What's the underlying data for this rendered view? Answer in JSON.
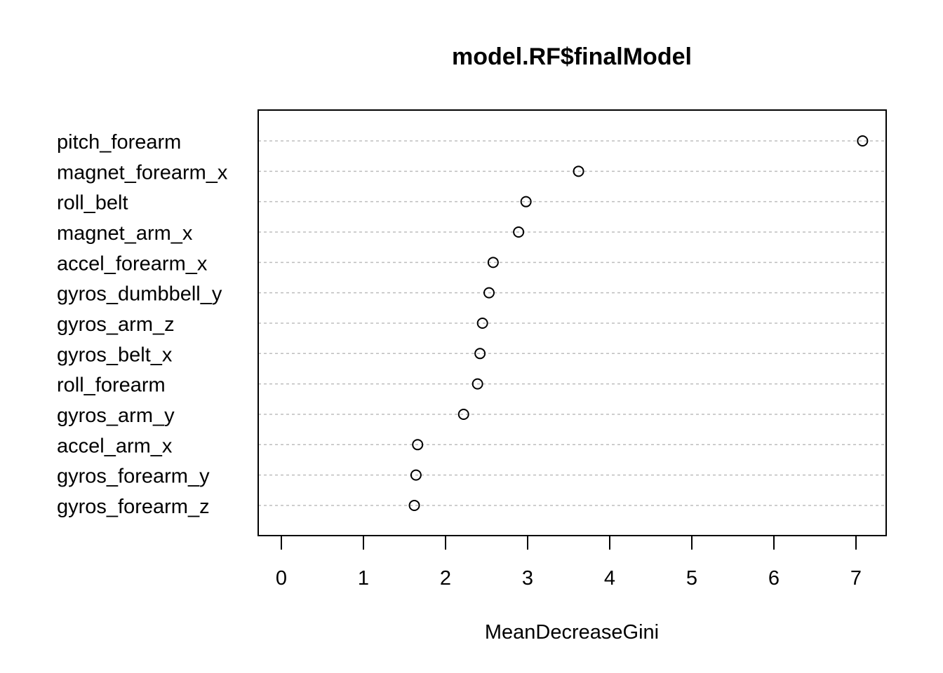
{
  "chart_data": {
    "type": "scatter",
    "title": "model.RF$finalModel",
    "xlabel": "MeanDecreaseGini",
    "ylabel": "",
    "xlim": [
      0,
      7
    ],
    "xticks": [
      "0",
      "1",
      "2",
      "3",
      "4",
      "5",
      "6",
      "7"
    ],
    "grid": "horizontal dashed guide lines per variable",
    "marker": "open circle",
    "categories": [
      "pitch_forearm",
      "magnet_forearm_x",
      "roll_belt",
      "magnet_arm_x",
      "accel_forearm_x",
      "gyros_dumbbell_y",
      "gyros_arm_z",
      "gyros_belt_x",
      "roll_forearm",
      "gyros_arm_y",
      "accel_arm_x",
      "gyros_forearm_y",
      "gyros_forearm_z"
    ],
    "values": [
      7.08,
      3.62,
      2.98,
      2.89,
      2.58,
      2.53,
      2.45,
      2.42,
      2.39,
      2.22,
      1.66,
      1.64,
      1.62
    ]
  }
}
